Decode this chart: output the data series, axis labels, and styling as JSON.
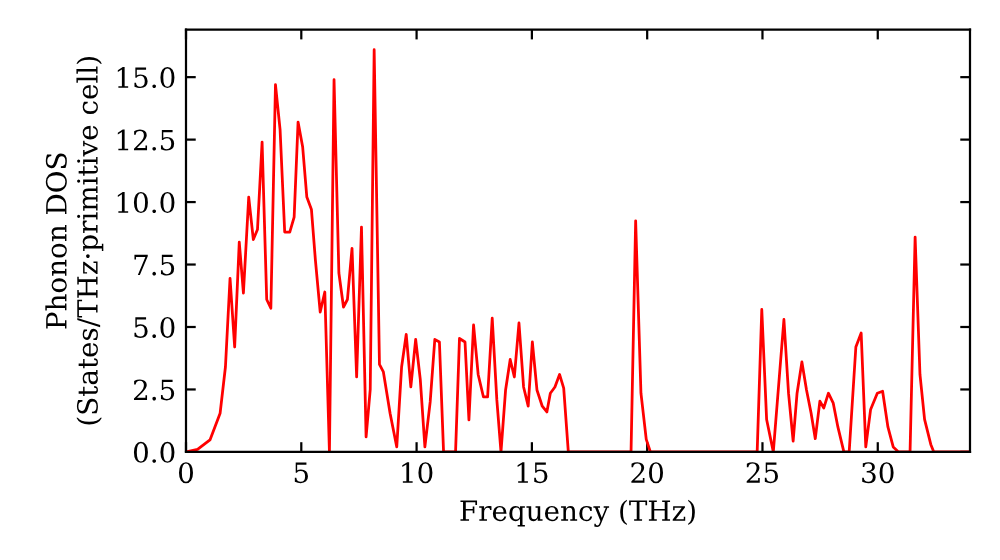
{
  "chart_data": {
    "type": "line",
    "xlabel": "Frequency (THz)",
    "ylabel": "Phonon DOS\n(States/THz·primitive cell)",
    "xlim": [
      0,
      34
    ],
    "ylim": [
      0,
      16.9
    ],
    "xticks": [
      0,
      5,
      10,
      15,
      20,
      25,
      30
    ],
    "yticks": [
      {
        "value": 0,
        "label": "0.0"
      },
      {
        "value": 2.5,
        "label": "2.5"
      },
      {
        "value": 5,
        "label": "5.0"
      },
      {
        "value": 7.5,
        "label": "7.5"
      },
      {
        "value": 10,
        "label": "10.0"
      },
      {
        "value": 12.5,
        "label": "12.5"
      },
      {
        "value": 15,
        "label": "15.0"
      }
    ],
    "grid": false,
    "marker": "none",
    "line_style": "solid",
    "series": [
      {
        "color": "#ff0000",
        "x": [
          0,
          0.5,
          1.04,
          1.48,
          1.71,
          1.91,
          2.11,
          2.31,
          2.49,
          2.72,
          2.92,
          3.1,
          3.3,
          3.5,
          3.68,
          3.88,
          4.08,
          4.28,
          4.5,
          4.69,
          4.86,
          5.06,
          5.24,
          5.44,
          5.61,
          5.82,
          6.02,
          6.22,
          6.42,
          6.63,
          6.83,
          7.0,
          7.2,
          7.4,
          7.61,
          7.81,
          7.99,
          8.16,
          8.39,
          8.56,
          8.85,
          9.14,
          9.35,
          9.55,
          9.75,
          9.96,
          10.16,
          10.36,
          10.59,
          10.79,
          10.99,
          11.17,
          11.69,
          11.86,
          12.1,
          12.27,
          12.47,
          12.67,
          12.9,
          13.08,
          13.28,
          13.48,
          13.66,
          13.86,
          14.06,
          14.24,
          14.44,
          14.64,
          14.84,
          15.02,
          15.22,
          15.45,
          15.65,
          15.8,
          16.0,
          16.2,
          16.38,
          16.58,
          19.3,
          19.5,
          19.73,
          19.96,
          20.14,
          24.77,
          24.97,
          25.18,
          25.47,
          25.93,
          26.13,
          26.33,
          26.5,
          26.71,
          26.91,
          27.11,
          27.29,
          27.49,
          27.66,
          27.86,
          28.07,
          28.27,
          28.53,
          28.76,
          29.05,
          29.28,
          29.48,
          29.69,
          29.98,
          30.21,
          30.44,
          30.67,
          30.9,
          31.4,
          31.62,
          31.83,
          32.03,
          32.3,
          32.43,
          34
        ],
        "values": [
          0,
          0.1,
          0.48,
          1.55,
          3.4,
          6.95,
          4.2,
          8.4,
          6.36,
          10.2,
          8.5,
          8.9,
          12.4,
          6.1,
          5.75,
          14.7,
          12.9,
          8.8,
          8.8,
          9.4,
          13.2,
          12.2,
          10.2,
          9.7,
          7.7,
          5.6,
          6.4,
          0,
          14.9,
          7.16,
          5.8,
          6.1,
          8.15,
          3.0,
          9.0,
          0.6,
          2.5,
          16.1,
          3.5,
          3.2,
          1.55,
          0.2,
          3.4,
          4.7,
          2.6,
          4.5,
          2.9,
          0.2,
          2.0,
          4.5,
          4.4,
          0,
          0,
          4.54,
          4.4,
          1.28,
          5.08,
          3.1,
          2.2,
          2.2,
          5.35,
          2.08,
          0,
          2.48,
          3.7,
          3.0,
          5.16,
          2.6,
          1.83,
          4.4,
          2.48,
          1.83,
          1.6,
          2.35,
          2.6,
          3.1,
          2.55,
          0,
          0,
          9.25,
          2.35,
          0.5,
          0,
          0,
          5.7,
          1.3,
          0,
          5.3,
          2.35,
          0.43,
          2.35,
          3.6,
          2.48,
          1.55,
          0.53,
          2.03,
          1.76,
          2.35,
          1.95,
          1.0,
          0,
          0,
          4.2,
          4.76,
          0.2,
          1.7,
          2.35,
          2.43,
          1.0,
          0.2,
          0,
          0,
          8.6,
          3.1,
          1.3,
          0.3,
          0,
          0
        ]
      }
    ]
  }
}
